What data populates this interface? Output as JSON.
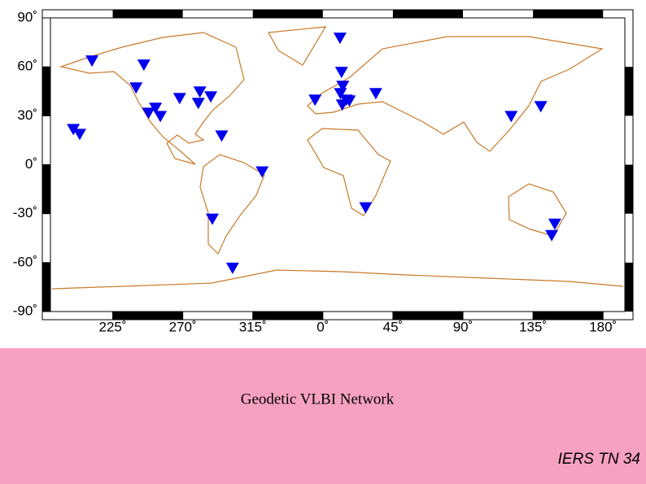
{
  "chart_data": {
    "type": "map",
    "title": "Geodetic VLBI Network",
    "footer": "IERS TN 34",
    "xlim": [
      185,
      554
    ],
    "ylim": [
      -90,
      90
    ],
    "xticks": [
      {
        "value": 225,
        "label": "225˚"
      },
      {
        "value": 270,
        "label": "270˚"
      },
      {
        "value": 315,
        "label": "315˚"
      },
      {
        "value": 360,
        "label": "0˚"
      },
      {
        "value": 405,
        "label": "45˚"
      },
      {
        "value": 450,
        "label": "90˚"
      },
      {
        "value": 495,
        "label": "135˚"
      },
      {
        "value": 540,
        "label": "180˚"
      }
    ],
    "yticks": [
      {
        "value": 90,
        "label": "90˚"
      },
      {
        "value": 60,
        "label": "60˚"
      },
      {
        "value": 30,
        "label": "30˚"
      },
      {
        "value": 0,
        "label": "0˚"
      },
      {
        "value": -30,
        "label": "-30˚"
      },
      {
        "value": -60,
        "label": "-60˚"
      },
      {
        "value": -90,
        "label": "-90˚"
      }
    ],
    "marker_color": "#0000ee",
    "coast_color": "#c87a2a",
    "x": [
      211.7,
      245,
      240,
      199.7,
      203.8,
      248,
      252.5,
      255.6,
      268,
      281,
      280,
      288,
      295,
      321,
      289,
      302,
      371,
      372,
      372.8,
      371.3,
      375,
      372.5,
      377,
      355,
      394,
      387.5,
      481,
      500,
      509,
      507
    ],
    "y": [
      64,
      61.5,
      47.5,
      22,
      19,
      32,
      35,
      30,
      41,
      45,
      38,
      42,
      18,
      -4,
      -33,
      -63,
      78,
      57,
      48.5,
      44,
      40,
      37,
      39.5,
      40,
      44,
      -26,
      30,
      36,
      -36,
      -43
    ]
  }
}
